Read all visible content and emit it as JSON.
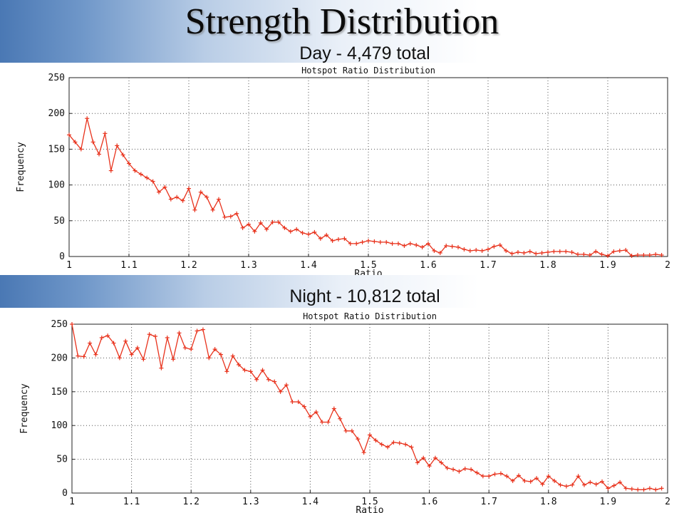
{
  "slide": {
    "title": "Strength Distribution",
    "day_caption": "Day - 4,479 total",
    "night_caption": "Night - 10,812 total"
  },
  "colors": {
    "series": "#e8321c",
    "grid": "#555555",
    "axis": "#222222"
  },
  "chart_data": [
    {
      "type": "line",
      "title": "Hotspot Ratio Distribution",
      "xlabel": "Ratio",
      "ylabel": "Frequency",
      "xlim": [
        1,
        2
      ],
      "ylim": [
        0,
        250
      ],
      "grid": true,
      "x_ticks": [
        "1",
        "1.1",
        "1.2",
        "1.3",
        "1.4",
        "1.5",
        "1.6",
        "1.7",
        "1.8",
        "1.9",
        "2"
      ],
      "y_ticks": [
        "0",
        "50",
        "100",
        "150",
        "200",
        "250"
      ],
      "x": [
        1.0,
        1.01,
        1.02,
        1.03,
        1.04,
        1.05,
        1.06,
        1.07,
        1.08,
        1.09,
        1.1,
        1.11,
        1.12,
        1.13,
        1.14,
        1.15,
        1.16,
        1.17,
        1.18,
        1.19,
        1.2,
        1.21,
        1.22,
        1.23,
        1.24,
        1.25,
        1.26,
        1.27,
        1.28,
        1.29,
        1.3,
        1.31,
        1.32,
        1.33,
        1.34,
        1.35,
        1.36,
        1.37,
        1.38,
        1.39,
        1.4,
        1.41,
        1.42,
        1.43,
        1.44,
        1.45,
        1.46,
        1.47,
        1.48,
        1.49,
        1.5,
        1.51,
        1.52,
        1.53,
        1.54,
        1.55,
        1.56,
        1.57,
        1.58,
        1.59,
        1.6,
        1.61,
        1.62,
        1.63,
        1.64,
        1.65,
        1.66,
        1.67,
        1.68,
        1.69,
        1.7,
        1.71,
        1.72,
        1.73,
        1.74,
        1.75,
        1.76,
        1.77,
        1.78,
        1.79,
        1.8,
        1.81,
        1.82,
        1.83,
        1.84,
        1.85,
        1.86,
        1.87,
        1.88,
        1.89,
        1.9,
        1.91,
        1.92,
        1.93,
        1.94,
        1.95,
        1.96,
        1.97,
        1.98,
        1.99
      ],
      "values": [
        170,
        160,
        150,
        193,
        160,
        143,
        172,
        120,
        155,
        142,
        130,
        120,
        115,
        110,
        105,
        90,
        97,
        80,
        83,
        78,
        95,
        65,
        90,
        83,
        65,
        80,
        55,
        56,
        60,
        40,
        45,
        35,
        47,
        38,
        48,
        48,
        40,
        35,
        38,
        33,
        31,
        34,
        25,
        30,
        22,
        24,
        25,
        18,
        18,
        20,
        22,
        21,
        20,
        20,
        18,
        18,
        15,
        18,
        16,
        13,
        18,
        8,
        5,
        15,
        14,
        13,
        10,
        8,
        9,
        8,
        10,
        14,
        16,
        8,
        4,
        6,
        5,
        7,
        4,
        5,
        6,
        7,
        7,
        7,
        6,
        3,
        3,
        2,
        7,
        3,
        1,
        7,
        8,
        9,
        1,
        2,
        2,
        2,
        3,
        2
      ]
    },
    {
      "type": "line",
      "title": "Hotspot Ratio Distribution",
      "xlabel": "Ratio",
      "ylabel": "Frequency",
      "xlim": [
        1,
        2
      ],
      "ylim": [
        0,
        250
      ],
      "grid": true,
      "x_ticks": [
        "1",
        "1.1",
        "1.2",
        "1.3",
        "1.4",
        "1.5",
        "1.6",
        "1.7",
        "1.8",
        "1.9",
        "2"
      ],
      "y_ticks": [
        "0",
        "50",
        "100",
        "150",
        "200",
        "250"
      ],
      "x": [
        1.0,
        1.01,
        1.02,
        1.03,
        1.04,
        1.05,
        1.06,
        1.07,
        1.08,
        1.09,
        1.1,
        1.11,
        1.12,
        1.13,
        1.14,
        1.15,
        1.16,
        1.17,
        1.18,
        1.19,
        1.2,
        1.21,
        1.22,
        1.23,
        1.24,
        1.25,
        1.26,
        1.27,
        1.28,
        1.29,
        1.3,
        1.31,
        1.32,
        1.33,
        1.34,
        1.35,
        1.36,
        1.37,
        1.38,
        1.39,
        1.4,
        1.41,
        1.42,
        1.43,
        1.44,
        1.45,
        1.46,
        1.47,
        1.48,
        1.49,
        1.5,
        1.51,
        1.52,
        1.53,
        1.54,
        1.55,
        1.56,
        1.57,
        1.58,
        1.59,
        1.6,
        1.61,
        1.62,
        1.63,
        1.64,
        1.65,
        1.66,
        1.67,
        1.68,
        1.69,
        1.7,
        1.71,
        1.72,
        1.73,
        1.74,
        1.75,
        1.76,
        1.77,
        1.78,
        1.79,
        1.8,
        1.81,
        1.82,
        1.83,
        1.84,
        1.85,
        1.86,
        1.87,
        1.88,
        1.89,
        1.9,
        1.91,
        1.92,
        1.93,
        1.94,
        1.95,
        1.96,
        1.97,
        1.98,
        1.99
      ],
      "values": [
        250,
        203,
        202,
        222,
        205,
        230,
        233,
        222,
        200,
        225,
        205,
        215,
        198,
        235,
        232,
        185,
        230,
        198,
        237,
        215,
        213,
        240,
        242,
        200,
        213,
        205,
        180,
        203,
        190,
        182,
        180,
        168,
        182,
        168,
        165,
        150,
        160,
        135,
        135,
        128,
        113,
        120,
        105,
        105,
        125,
        110,
        92,
        92,
        80,
        60,
        86,
        78,
        72,
        68,
        75,
        74,
        72,
        68,
        45,
        52,
        40,
        52,
        45,
        37,
        35,
        32,
        36,
        35,
        30,
        25,
        25,
        28,
        29,
        25,
        18,
        26,
        18,
        17,
        22,
        13,
        25,
        18,
        12,
        10,
        12,
        25,
        12,
        16,
        13,
        17,
        7,
        11,
        16,
        7,
        6,
        5,
        5,
        7,
        5,
        7
      ]
    }
  ]
}
